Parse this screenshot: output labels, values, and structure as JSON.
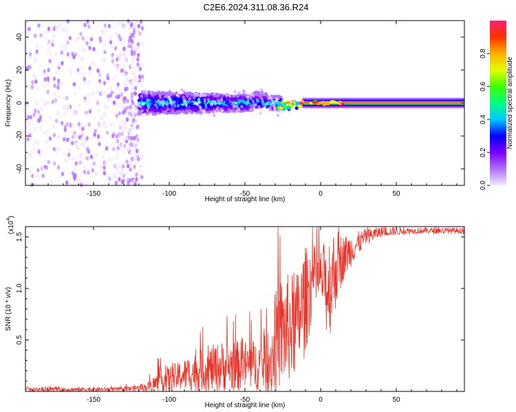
{
  "title": "C2E6.2024.311.08.36.R24",
  "chart_data": [
    {
      "type": "heatmap",
      "xlabel": "Height of straight line (km)",
      "ylabel": "Frequency (Hz)",
      "xlim": [
        -195,
        95
      ],
      "ylim": [
        -50,
        50
      ],
      "xticks": [
        -150,
        -100,
        -50,
        0,
        50
      ],
      "yticks": [
        -40,
        -20,
        0,
        20,
        40
      ],
      "colorbar": {
        "label": "Normalized spectral amplitude",
        "ticks": [
          0.0,
          0.2,
          0.4,
          0.6,
          0.8
        ],
        "range": [
          0,
          1
        ],
        "colors": [
          "#f4e8ff",
          "#b070ff",
          "#7a00ff",
          "#0000ff",
          "#00c8ff",
          "#00ff80",
          "#40ff00",
          "#e0ff00",
          "#ffb000",
          "#ff3000",
          "#ff2070"
        ]
      },
      "regions": [
        {
          "x_range": [
            -195,
            -120
          ],
          "freq_range": [
            -50,
            50
          ],
          "amplitude": [
            0.0,
            0.15
          ],
          "pattern": "scattered speckle"
        },
        {
          "x_range": [
            -120,
            -25
          ],
          "freq_range": [
            -10,
            10
          ],
          "amplitude": [
            0.1,
            0.45
          ],
          "pattern": "dense band"
        },
        {
          "x_range": [
            -25,
            95
          ],
          "freq_range": [
            -3,
            3
          ],
          "amplitude": [
            0.2,
            0.98
          ],
          "pattern": "narrow line"
        }
      ]
    },
    {
      "type": "line",
      "xlabel": "Height of straight line (km)",
      "ylabel": "SNR (10 * v/v)",
      "multiplier_label": "(x10",
      "multiplier_exp": "4",
      "xlim": [
        -195,
        95
      ],
      "ylim": [
        0,
        1.6
      ],
      "xticks": [
        -150,
        -100,
        -50,
        0,
        50
      ],
      "yticks": [
        0.5,
        1.0,
        1.5
      ],
      "ytick_labels": [
        "0.5",
        "1.0",
        "1.5"
      ],
      "series": [
        {
          "color": "#e8352a",
          "envelope": [
            {
              "x": -195,
              "base": 0.02,
              "amp": 0.02
            },
            {
              "x": -130,
              "base": 0.02,
              "amp": 0.02
            },
            {
              "x": -115,
              "base": 0.04,
              "amp": 0.04
            },
            {
              "x": -105,
              "base": 0.1,
              "amp": 0.12
            },
            {
              "x": -95,
              "base": 0.14,
              "amp": 0.14
            },
            {
              "x": -80,
              "base": 0.2,
              "amp": 0.2
            },
            {
              "x": -65,
              "base": 0.24,
              "amp": 0.25
            },
            {
              "x": -50,
              "base": 0.25,
              "amp": 0.25
            },
            {
              "x": -38,
              "base": 0.26,
              "amp": 0.25
            },
            {
              "x": -33,
              "base": 0.3,
              "amp": 0.35
            },
            {
              "x": -28,
              "base": 0.55,
              "amp": 0.55
            },
            {
              "x": -22,
              "base": 0.6,
              "amp": 0.55
            },
            {
              "x": -16,
              "base": 0.65,
              "amp": 0.5
            },
            {
              "x": -11,
              "base": 0.85,
              "amp": 0.55
            },
            {
              "x": -6,
              "base": 1.05,
              "amp": 0.4
            },
            {
              "x": 0,
              "base": 1.12,
              "amp": 0.25
            },
            {
              "x": 5,
              "base": 1.0,
              "amp": 0.55
            },
            {
              "x": 10,
              "base": 1.2,
              "amp": 0.4
            },
            {
              "x": 15,
              "base": 1.3,
              "amp": 0.22
            },
            {
              "x": 22,
              "base": 1.4,
              "amp": 0.14
            },
            {
              "x": 30,
              "base": 1.5,
              "amp": 0.08
            },
            {
              "x": 40,
              "base": 1.55,
              "amp": 0.05
            },
            {
              "x": 60,
              "base": 1.56,
              "amp": 0.03
            },
            {
              "x": 95,
              "base": 1.56,
              "amp": 0.03
            }
          ]
        }
      ]
    }
  ]
}
